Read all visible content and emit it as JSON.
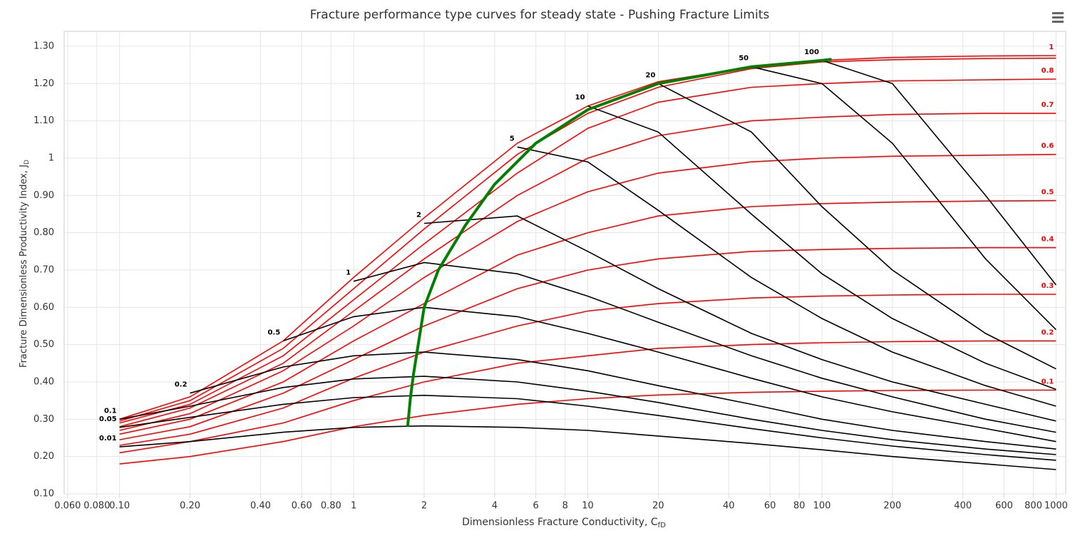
{
  "chart_data": {
    "type": "line",
    "title": "Fracture performance type curves for steady state - Pushing Fracture Limits",
    "xlabel": "Dimensionless Fracture Conductivity, C",
    "xlabel_sub": "fD",
    "ylabel": "Fracture Dimensionless Productivity Index, J",
    "ylabel_sub": "D",
    "xscale": "log",
    "grid": true,
    "xlim": [
      0.058,
      1100
    ],
    "ylim": [
      0.1,
      1.34
    ],
    "xticks": [
      {
        "value": 0.06,
        "label": "0.060"
      },
      {
        "value": 0.08,
        "label": "0.080"
      },
      {
        "value": 0.1,
        "label": "0.10"
      },
      {
        "value": 0.2,
        "label": "0.20"
      },
      {
        "value": 0.4,
        "label": "0.40"
      },
      {
        "value": 0.6,
        "label": "0.60"
      },
      {
        "value": 0.8,
        "label": "0.80"
      },
      1,
      2,
      4,
      6,
      8,
      10,
      20,
      40,
      60,
      80,
      100,
      200,
      400,
      600,
      800,
      1000
    ],
    "yticks": [
      {
        "value": 0.1,
        "label": "0.10"
      },
      {
        "value": 0.2,
        "label": "0.20"
      },
      {
        "value": 0.3,
        "label": "0.30"
      },
      {
        "value": 0.4,
        "label": "0.40"
      },
      {
        "value": 0.5,
        "label": "0.50"
      },
      {
        "value": 0.6,
        "label": "0.60"
      },
      {
        "value": 0.7,
        "label": "0.70"
      },
      {
        "value": 0.8,
        "label": "0.80"
      },
      {
        "value": 0.9,
        "label": "0.90"
      },
      1,
      {
        "value": 1.1,
        "label": "1.10"
      },
      {
        "value": 1.2,
        "label": "1.20"
      },
      {
        "value": 1.3,
        "label": "1.30"
      }
    ],
    "x": [
      0.1,
      0.2,
      0.5,
      1,
      2,
      5,
      10,
      20,
      50,
      100,
      200,
      500,
      1000
    ],
    "series": [
      {
        "name": "1",
        "color": "#ff0000",
        "label_at": "end",
        "values": [
          0.3,
          0.36,
          0.51,
          0.68,
          0.84,
          1.04,
          1.14,
          1.205,
          1.245,
          1.262,
          1.27,
          1.274,
          1.275
        ]
      },
      {
        "color": "#ff0000",
        "values": [
          0.295,
          0.35,
          0.49,
          0.65,
          0.81,
          1.01,
          1.12,
          1.19,
          1.24,
          1.258,
          1.264,
          1.267,
          1.268
        ]
      },
      {
        "name": "0.8",
        "color": "#ff0000",
        "label_at": "end",
        "values": [
          0.29,
          0.34,
          0.47,
          0.62,
          0.77,
          0.96,
          1.08,
          1.15,
          1.19,
          1.2,
          1.207,
          1.21,
          1.212
        ]
      },
      {
        "name": "0.7",
        "color": "#ff0000",
        "label_at": "end",
        "values": [
          0.28,
          0.33,
          0.45,
          0.59,
          0.73,
          0.9,
          1.0,
          1.06,
          1.1,
          1.11,
          1.117,
          1.12,
          1.12
        ]
      },
      {
        "name": "0.6",
        "color": "#ff0000",
        "label_at": "end",
        "values": [
          0.27,
          0.315,
          0.43,
          0.55,
          0.68,
          0.83,
          0.91,
          0.96,
          0.99,
          1.0,
          1.005,
          1.008,
          1.01
        ]
      },
      {
        "name": "0.5",
        "color": "#ff0000",
        "label_at": "end",
        "values": [
          0.26,
          0.3,
          0.4,
          0.51,
          0.61,
          0.74,
          0.8,
          0.845,
          0.87,
          0.878,
          0.882,
          0.885,
          0.886
        ]
      },
      {
        "name": "0.4",
        "color": "#ff0000",
        "label_at": "end",
        "values": [
          0.245,
          0.28,
          0.37,
          0.46,
          0.55,
          0.65,
          0.7,
          0.73,
          0.75,
          0.755,
          0.758,
          0.76,
          0.76
        ]
      },
      {
        "name": "0.3",
        "color": "#ff0000",
        "label_at": "end",
        "values": [
          0.23,
          0.26,
          0.33,
          0.41,
          0.48,
          0.55,
          0.59,
          0.61,
          0.625,
          0.63,
          0.633,
          0.635,
          0.635
        ]
      },
      {
        "name": "0.2",
        "color": "#ff0000",
        "label_at": "end",
        "values": [
          0.21,
          0.24,
          0.29,
          0.35,
          0.4,
          0.45,
          0.47,
          0.49,
          0.5,
          0.505,
          0.508,
          0.51,
          0.51
        ]
      },
      {
        "name": "0.1",
        "color": "#ff0000",
        "label_at": "end",
        "values": [
          0.18,
          0.2,
          0.24,
          0.28,
          0.31,
          0.34,
          0.355,
          0.365,
          0.372,
          0.375,
          0.377,
          0.378,
          0.378
        ]
      },
      {
        "name": "0.01",
        "color": "#000000",
        "label_at": "start",
        "values": [
          0.226,
          0.24,
          0.265,
          0.278,
          0.282,
          0.278,
          0.27,
          0.255,
          0.235,
          0.218,
          0.2,
          0.18,
          0.165
        ]
      },
      {
        "name": "0.05",
        "color": "#000000",
        "label_at": "start",
        "values": [
          0.278,
          0.305,
          0.34,
          0.358,
          0.364,
          0.355,
          0.335,
          0.31,
          0.275,
          0.25,
          0.228,
          0.205,
          0.19
        ]
      },
      {
        "name": "0.1",
        "color": "#000000",
        "label_at": "start",
        "values": [
          0.3,
          0.335,
          0.385,
          0.408,
          0.415,
          0.4,
          0.375,
          0.345,
          0.3,
          0.27,
          0.245,
          0.22,
          0.205
        ]
      },
      {
        "name": "0.2",
        "color": "#000000",
        "label_at": "start",
        "values": [
          null,
          0.37,
          0.44,
          0.47,
          0.48,
          0.46,
          0.43,
          0.39,
          0.34,
          0.3,
          0.27,
          0.24,
          0.22
        ]
      },
      {
        "name": "0.5",
        "color": "#000000",
        "label_at": "start",
        "values": [
          null,
          null,
          0.51,
          0.575,
          0.6,
          0.575,
          0.53,
          0.48,
          0.41,
          0.36,
          0.32,
          0.275,
          0.24
        ]
      },
      {
        "name": "1",
        "color": "#000000",
        "label_at": "start",
        "values": [
          null,
          null,
          null,
          0.67,
          0.72,
          0.69,
          0.63,
          0.56,
          0.47,
          0.41,
          0.36,
          0.3,
          0.265
        ]
      },
      {
        "name": "2",
        "color": "#000000",
        "label_at": "start",
        "values": [
          null,
          null,
          null,
          null,
          0.825,
          0.845,
          0.75,
          0.65,
          0.53,
          0.46,
          0.4,
          0.34,
          0.295
        ]
      },
      {
        "name": "5",
        "color": "#000000",
        "label_at": "start",
        "values": [
          null,
          null,
          null,
          null,
          null,
          1.03,
          0.99,
          0.86,
          0.68,
          0.57,
          0.48,
          0.39,
          0.335
        ]
      },
      {
        "name": "10",
        "color": "#000000",
        "label_at": "start",
        "values": [
          null,
          null,
          null,
          null,
          null,
          null,
          1.14,
          1.07,
          0.85,
          0.69,
          0.57,
          0.45,
          0.38
        ]
      },
      {
        "name": "20",
        "color": "#000000",
        "label_at": "start",
        "values": [
          null,
          null,
          null,
          null,
          null,
          null,
          null,
          1.2,
          1.07,
          0.87,
          0.7,
          0.53,
          0.435
        ]
      },
      {
        "name": "50",
        "color": "#000000",
        "label_at": "start",
        "values": [
          null,
          null,
          null,
          null,
          null,
          null,
          null,
          null,
          1.245,
          1.2,
          1.04,
          0.73,
          0.54
        ]
      },
      {
        "name": "100",
        "color": "#000000",
        "label_at": "start",
        "values": [
          null,
          null,
          null,
          null,
          null,
          null,
          null,
          null,
          null,
          1.262,
          1.2,
          0.9,
          0.66
        ]
      },
      {
        "color": "#008000",
        "width": 4,
        "x": [
          1.7,
          1.75,
          1.8,
          2,
          2.3,
          3,
          4,
          6,
          10,
          20,
          50,
          100,
          110
        ],
        "values": [
          0.28,
          0.36,
          0.42,
          0.6,
          0.7,
          0.82,
          0.93,
          1.04,
          1.13,
          1.2,
          1.245,
          1.262,
          1.265
        ]
      }
    ]
  }
}
